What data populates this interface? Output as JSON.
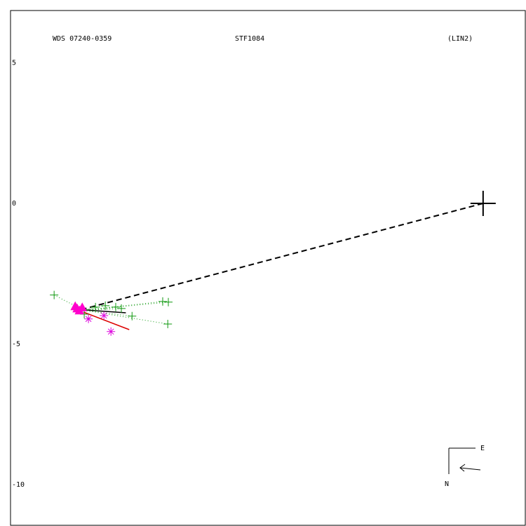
{
  "chart_data": {
    "type": "scatter",
    "title": "WDS 07240-0359",
    "subtitle": "STF1084",
    "note": "(LIN2)",
    "compass": {
      "east": "E",
      "north": "N"
    },
    "xlim": [
      -16.8,
      1.5
    ],
    "ylim": [
      6.86,
      -11.45
    ],
    "yticks": [
      5,
      0,
      -5,
      -10
    ],
    "series": [
      {
        "marker": "dashed",
        "color": "#000000",
        "x": [
          0,
          -14.18
        ],
        "y": [
          0,
          -3.75
        ]
      },
      {
        "marker": "line",
        "color": "#000000",
        "x": [
          -14.45,
          -12.7
        ],
        "y": [
          -3.77,
          -3.89
        ]
      },
      {
        "marker": "line",
        "color": "#dd0000",
        "x": [
          -14.2,
          -12.58
        ],
        "y": [
          -3.87,
          -4.49
        ]
      },
      {
        "marker": "plus",
        "color": "#119911",
        "x": [
          -15.25,
          -14.18,
          -13.78,
          -13.43,
          -13.06,
          -12.86,
          -12.48,
          -11.39,
          -11.19,
          -11.21
        ],
        "y": [
          -3.26,
          -3.94,
          -3.69,
          -3.64,
          -3.69,
          -3.74,
          -4.01,
          -3.49,
          -3.51,
          -4.29
        ]
      },
      {
        "marker": "asterisk",
        "color": "#dd00dd",
        "x": [
          -14.03,
          -13.48,
          -13.23
        ],
        "y": [
          -4.11,
          -3.99,
          -4.56
        ]
      },
      {
        "marker": "triangle",
        "color": "#ff00cc",
        "x": [
          -14.43,
          -14.35,
          -14.5,
          -14.25
        ],
        "y": [
          -3.74,
          -3.81,
          -3.66,
          -3.7
        ]
      },
      {
        "marker": "primary",
        "color": "#000000",
        "x": [
          0
        ],
        "y": [
          0
        ]
      }
    ]
  }
}
